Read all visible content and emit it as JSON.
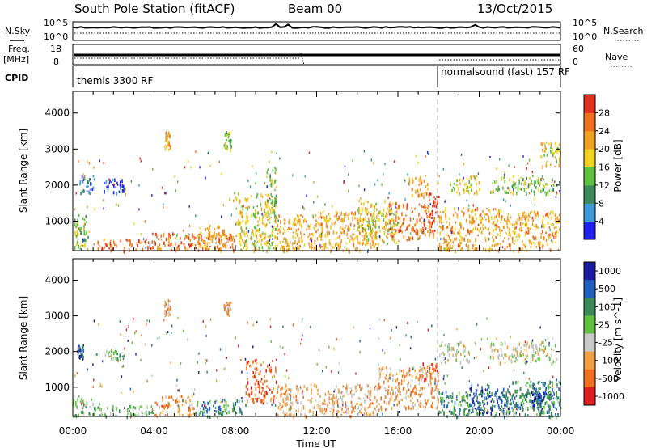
{
  "header": {
    "station": "South Pole Station (fitACF)",
    "beam": "Beam 00",
    "date": "13/Oct/2015"
  },
  "summary": {
    "nsky_label": "N.Sky",
    "nsky_ticks": [
      "10^5",
      "10^0"
    ],
    "nsearch_label": "N.Search",
    "nsearch_ticks": [
      "10^5",
      "10^0"
    ],
    "freq_label": "Freq.",
    "freq_unit": "[MHz]",
    "freq_ticks": [
      "18",
      "8"
    ],
    "nave_label": "Nave",
    "nave_ticks": [
      "60",
      "0"
    ],
    "cpid_label": "CPID",
    "cpid_segments": [
      {
        "label": "themis 3300 RF",
        "start_hour": 0
      },
      {
        "label": "normalsound (fast) 157 RF",
        "start_hour": 18
      }
    ]
  },
  "axes": {
    "xlabel": "Time UT",
    "x_ticks": [
      "00:00",
      "04:00",
      "08:00",
      "12:00",
      "16:00",
      "20:00",
      "00:00"
    ],
    "ylabel": "Slant Range [km]",
    "y_ticks": [
      "1000",
      "2000",
      "3000",
      "4000"
    ]
  },
  "colors": {
    "power": [
      "#2020f0",
      "#3a9bd8",
      "#3a8a5a",
      "#5fc040",
      "#f0d020",
      "#f0a020",
      "#f07020",
      "#e03020"
    ],
    "velocity": [
      "#1a1aa0",
      "#2060c0",
      "#3a8a5a",
      "#60c040",
      "#c8c8c8",
      "#f0a040",
      "#f07020",
      "#e02020"
    ]
  },
  "chart_data": [
    {
      "type": "heatmap",
      "title": "",
      "xlabel": "Time UT",
      "ylabel": "Slant Range [km]",
      "xlim": [
        0,
        24
      ],
      "ylim": [
        180,
        4600
      ],
      "colorbar": {
        "label": "Power [dB]",
        "ticks": [
          "4",
          "8",
          "12",
          "16",
          "20",
          "24",
          "28"
        ],
        "range": [
          0,
          32
        ]
      },
      "regions": [
        {
          "t0": 0.0,
          "t1": 0.8,
          "r0": 200,
          "r1": 1200,
          "level": 3
        },
        {
          "t0": 0.3,
          "t1": 1.0,
          "r0": 1800,
          "r1": 2300,
          "level": 1
        },
        {
          "t0": 1.5,
          "t1": 2.5,
          "r0": 1800,
          "r1": 2200,
          "level": 0
        },
        {
          "t0": 1.0,
          "t1": 4.0,
          "r0": 200,
          "r1": 500,
          "level": 6
        },
        {
          "t0": 4.0,
          "t1": 8.0,
          "r0": 200,
          "r1": 700,
          "level": 6
        },
        {
          "t0": 4.5,
          "t1": 4.8,
          "r0": 3000,
          "r1": 3500,
          "level": 5
        },
        {
          "t0": 6.0,
          "t1": 7.5,
          "r0": 200,
          "r1": 900,
          "level": 5
        },
        {
          "t0": 7.4,
          "t1": 7.8,
          "r0": 3000,
          "r1": 3500,
          "level": 3
        },
        {
          "t0": 8.0,
          "t1": 10.0,
          "r0": 200,
          "r1": 1800,
          "level": 4
        },
        {
          "t0": 9.5,
          "t1": 10.0,
          "r0": 1000,
          "r1": 2600,
          "level": 3
        },
        {
          "t0": 10.0,
          "t1": 12.0,
          "r0": 200,
          "r1": 1200,
          "level": 5
        },
        {
          "t0": 12.0,
          "t1": 15.0,
          "r0": 200,
          "r1": 1300,
          "level": 5
        },
        {
          "t0": 14.0,
          "t1": 16.0,
          "r0": 400,
          "r1": 1600,
          "level": 4
        },
        {
          "t0": 15.5,
          "t1": 17.8,
          "r0": 500,
          "r1": 1500,
          "level": 6
        },
        {
          "t0": 16.5,
          "t1": 17.5,
          "r0": 1700,
          "r1": 2300,
          "level": 5
        },
        {
          "t0": 17.5,
          "t1": 18.0,
          "r0": 1000,
          "r1": 1800,
          "level": 7
        },
        {
          "t0": 18.0,
          "t1": 21.0,
          "r0": 200,
          "r1": 1400,
          "level": 5
        },
        {
          "t0": 18.5,
          "t1": 20.0,
          "r0": 1800,
          "r1": 2300,
          "level": 4
        },
        {
          "t0": 21.0,
          "t1": 24.0,
          "r0": 200,
          "r1": 1300,
          "level": 5
        },
        {
          "t0": 20.5,
          "t1": 23.8,
          "r0": 1800,
          "r1": 2300,
          "level": 3
        },
        {
          "t0": 23.0,
          "t1": 24.0,
          "r0": 2500,
          "r1": 3200,
          "level": 4
        }
      ]
    },
    {
      "type": "heatmap",
      "title": "",
      "xlabel": "Time UT",
      "ylabel": "Slant Range [km]",
      "xlim": [
        0,
        24
      ],
      "ylim": [
        180,
        4600
      ],
      "colorbar": {
        "label": "Velocity [m s^-1]",
        "ticks": [
          "1000",
          "500",
          "100",
          "25",
          "-25",
          "-100",
          "-500",
          "-1000"
        ],
        "range": [
          -1000,
          1000
        ]
      },
      "regions": [
        {
          "t0": 0.0,
          "t1": 1.0,
          "r0": 200,
          "r1": 700,
          "level": 3
        },
        {
          "t0": 0.2,
          "t1": 0.5,
          "r0": 1800,
          "r1": 2200,
          "level": 1
        },
        {
          "t0": 1.5,
          "t1": 2.5,
          "r0": 1800,
          "r1": 2100,
          "level": 3
        },
        {
          "t0": 1.0,
          "t1": 4.0,
          "r0": 200,
          "r1": 500,
          "level": 3
        },
        {
          "t0": 4.0,
          "t1": 6.0,
          "r0": 200,
          "r1": 800,
          "level": 5
        },
        {
          "t0": 4.5,
          "t1": 4.8,
          "r0": 3000,
          "r1": 3500,
          "level": 5
        },
        {
          "t0": 6.0,
          "t1": 8.5,
          "r0": 200,
          "r1": 700,
          "level": 2
        },
        {
          "t0": 7.4,
          "t1": 7.8,
          "r0": 3000,
          "r1": 3400,
          "level": 5
        },
        {
          "t0": 8.5,
          "t1": 10.0,
          "r0": 600,
          "r1": 1800,
          "level": 6
        },
        {
          "t0": 10.0,
          "t1": 12.0,
          "r0": 200,
          "r1": 1100,
          "level": 5
        },
        {
          "t0": 12.0,
          "t1": 15.0,
          "r0": 200,
          "r1": 1100,
          "level": 5
        },
        {
          "t0": 15.0,
          "t1": 18.0,
          "r0": 400,
          "r1": 1600,
          "level": 5
        },
        {
          "t0": 17.0,
          "t1": 18.0,
          "r0": 1200,
          "r1": 1700,
          "level": 6
        },
        {
          "t0": 18.0,
          "t1": 19.5,
          "r0": 1700,
          "r1": 2300,
          "level": 4
        },
        {
          "t0": 18.0,
          "t1": 24.0,
          "r0": 200,
          "r1": 900,
          "level": 2
        },
        {
          "t0": 19.5,
          "t1": 21.5,
          "r0": 300,
          "r1": 1100,
          "level": 1
        },
        {
          "t0": 21.5,
          "t1": 24.0,
          "r0": 400,
          "r1": 1200,
          "level": 2
        },
        {
          "t0": 20.5,
          "t1": 23.8,
          "r0": 1700,
          "r1": 2300,
          "level": 4
        },
        {
          "t0": 22.5,
          "t1": 23.5,
          "r0": 500,
          "r1": 900,
          "level": 0
        }
      ]
    }
  ]
}
